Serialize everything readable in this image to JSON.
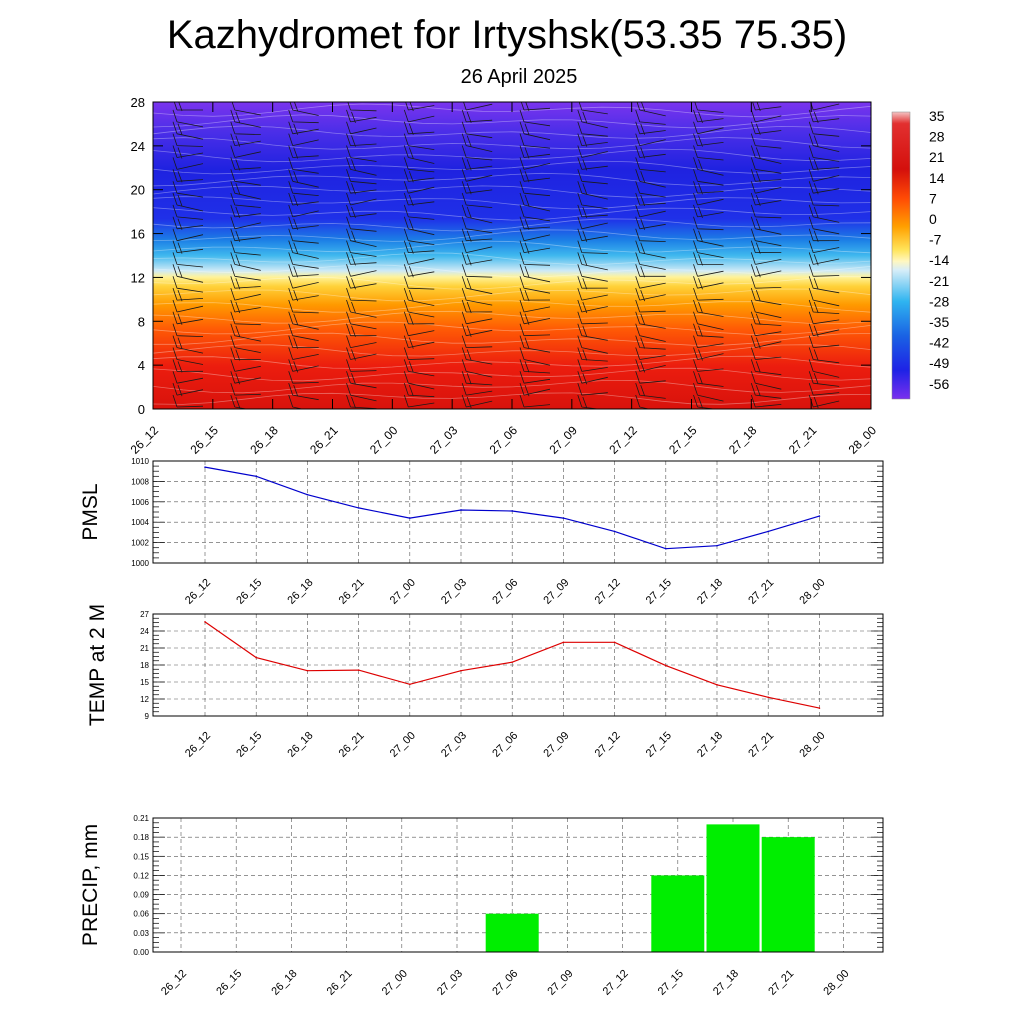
{
  "header": {
    "title": "Kazhydromet for Irtyshsk(53.35 75.35)",
    "date": "26 April 2025"
  },
  "chart_data": [
    {
      "type": "heatmap",
      "name": "vertical-section",
      "y_ticks": [
        "0",
        "4",
        "8",
        "12",
        "16",
        "20",
        "24",
        "28"
      ],
      "ylim": [
        0,
        28
      ],
      "x_ticks": [
        "26_12",
        "26_15",
        "26_18",
        "26_21",
        "27_00",
        "27_03",
        "27_06",
        "27_09",
        "27_12",
        "27_15",
        "27_18",
        "27_21",
        "28_00"
      ],
      "colorbar_labels": [
        "35",
        "28",
        "21",
        "14",
        "7",
        "0",
        "-7",
        "-14",
        "-21",
        "-28",
        "-35",
        "-42",
        "-49",
        "-56"
      ],
      "colors": {
        "warm_low": "#e8140c",
        "orange": "#ff8a00",
        "yellow": "#ffe64a",
        "cyan": "#33b8f0",
        "blue": "#1e1ee6",
        "violet": "#7a2ef0"
      }
    },
    {
      "type": "line",
      "name": "pmsl",
      "ylabel": "PMSL",
      "ylim": [
        1000,
        1010
      ],
      "y_ticks": [
        "1000",
        "1002",
        "1004",
        "1006",
        "1008",
        "1010"
      ],
      "categories": [
        "26_12",
        "26_15",
        "26_18",
        "26_21",
        "27_00",
        "27_03",
        "27_06",
        "27_09",
        "27_12",
        "27_15",
        "27_18",
        "27_21",
        "28_00"
      ],
      "values": [
        1009.4,
        1008.5,
        1006.7,
        1005.4,
        1004.4,
        1005.2,
        1005.1,
        1004.4,
        1003.1,
        1001.4,
        1001.7,
        1003.1,
        1004.6
      ],
      "color": "#0000cc"
    },
    {
      "type": "line",
      "name": "temp-2m",
      "ylabel": "TEMP at 2 M",
      "ylim": [
        9,
        27
      ],
      "y_ticks": [
        "9",
        "12",
        "15",
        "18",
        "21",
        "24",
        "27"
      ],
      "categories": [
        "26_12",
        "26_15",
        "26_18",
        "26_21",
        "27_00",
        "27_03",
        "27_06",
        "27_09",
        "27_12",
        "27_15",
        "27_18",
        "27_21",
        "28_00"
      ],
      "values": [
        25.6,
        19.3,
        17.0,
        17.1,
        14.6,
        17.0,
        18.5,
        22.0,
        22.0,
        17.9,
        14.5,
        12.3,
        10.4
      ],
      "color": "#dd0000"
    },
    {
      "type": "bar",
      "name": "precip",
      "ylabel": "PRECIP, mm",
      "ylim": [
        0,
        0.21
      ],
      "y_ticks": [
        "0.00",
        "0.03",
        "0.06",
        "0.09",
        "0.12",
        "0.15",
        "0.18",
        "0.21"
      ],
      "categories": [
        "26_12",
        "26_15",
        "26_18",
        "26_21",
        "27_00",
        "27_03",
        "27_06",
        "27_09",
        "27_12",
        "27_15",
        "27_18",
        "27_21",
        "28_00"
      ],
      "values": [
        0,
        0,
        0,
        0,
        0,
        0,
        0.06,
        0,
        0,
        0.12,
        0.2,
        0.18,
        0
      ],
      "color": "#00ee00"
    }
  ]
}
